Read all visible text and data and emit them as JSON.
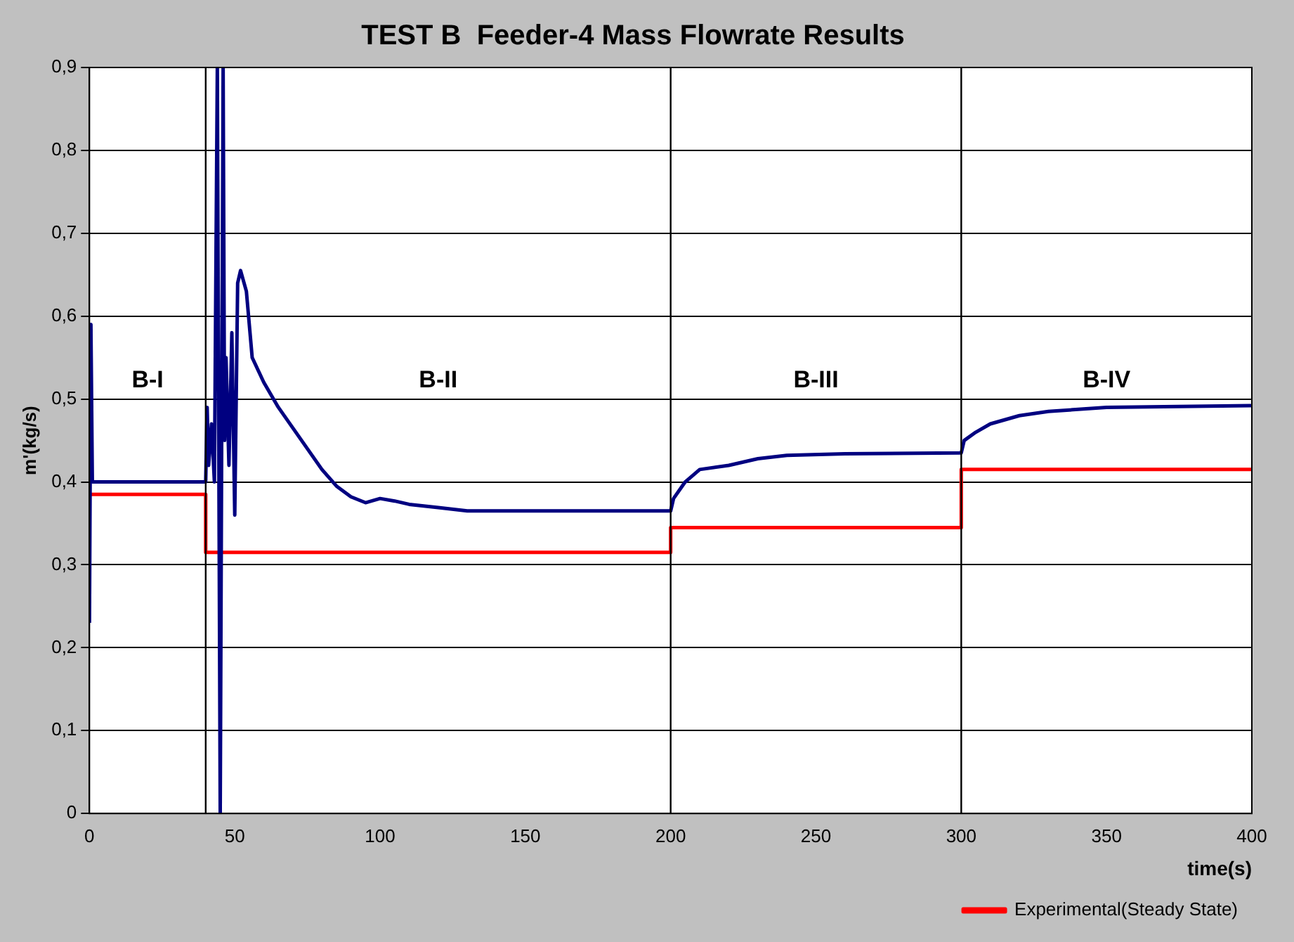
{
  "chart_data": {
    "type": "line",
    "title": "TEST B  Feeder-4 Mass Flowrate Results",
    "xlabel": "time(s)",
    "ylabel": "m'(kg/s)",
    "xlim": [
      0,
      400
    ],
    "xticks": [
      0,
      50,
      100,
      150,
      200,
      250,
      300,
      350,
      400
    ],
    "ylim": [
      0,
      0.9
    ],
    "yticks": [
      {
        "value": 0,
        "label": "0"
      },
      {
        "value": 0.1,
        "label": "0,1"
      },
      {
        "value": 0.2,
        "label": "0,2"
      },
      {
        "value": 0.3,
        "label": "0,3"
      },
      {
        "value": 0.4,
        "label": "0,4"
      },
      {
        "value": 0.5,
        "label": "0,5"
      },
      {
        "value": 0.6,
        "label": "0,6"
      },
      {
        "value": 0.7,
        "label": "0,7"
      },
      {
        "value": 0.8,
        "label": "0,8"
      },
      {
        "value": 0.9,
        "label": "0,9"
      }
    ],
    "grid": "y",
    "legend": "bottom right",
    "marker": "none",
    "line_style": "solid",
    "series": [
      {
        "color": "#000080",
        "x": [
          0,
          0.5,
          1,
          40,
          40.5,
          41,
          42,
          43,
          44,
          45,
          46,
          46.5,
          47,
          48,
          49,
          50,
          51,
          52,
          54,
          56,
          60,
          65,
          70,
          75,
          80,
          85,
          90,
          95,
          100,
          105,
          110,
          120,
          130,
          200,
          201,
          205,
          210,
          220,
          230,
          240,
          260,
          300,
          301,
          305,
          310,
          320,
          330,
          350,
          400
        ],
        "values": [
          0.23,
          0.59,
          0.4,
          0.4,
          0.49,
          0.42,
          0.47,
          0.4,
          0.9,
          0,
          0.9,
          0.45,
          0.55,
          0.42,
          0.58,
          0.36,
          0.64,
          0.655,
          0.63,
          0.55,
          0.52,
          0.49,
          0.465,
          0.44,
          0.415,
          0.395,
          0.382,
          0.375,
          0.38,
          0.377,
          0.373,
          0.369,
          0.365,
          0.365,
          0.38,
          0.4,
          0.415,
          0.42,
          0.428,
          0.432,
          0.434,
          0.435,
          0.45,
          0.46,
          0.47,
          0.48,
          0.485,
          0.49,
          0.492
        ]
      },
      {
        "name": "Experimental(Steady State)",
        "type": "step",
        "color": "#ff0000",
        "x": [
          0,
          40,
          200,
          300,
          400
        ],
        "values": [
          0.385,
          0.315,
          0.345,
          0.415,
          0.415
        ]
      }
    ],
    "ref_lines": [
      {
        "axis": "x",
        "value": 40,
        "color": "#000000"
      },
      {
        "axis": "x",
        "value": 200,
        "color": "#000000"
      },
      {
        "axis": "x",
        "value": 300,
        "color": "#000000"
      }
    ],
    "annotations": [
      "B-I",
      "B-II",
      "B-III",
      "B-IV"
    ]
  }
}
